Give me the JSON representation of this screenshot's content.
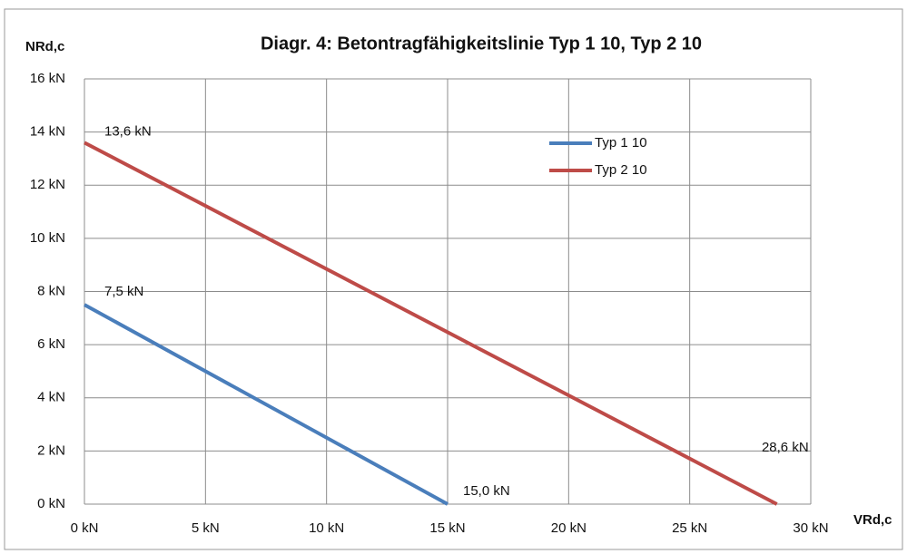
{
  "chart_data": {
    "type": "line",
    "title": "Diagr. 4: Betontragfähigkeitslinie  Typ 1 10, Typ 2 10",
    "y_label": "NRd,c",
    "x_label": "VRd,c",
    "xlim": [
      0,
      30
    ],
    "xticks": [
      {
        "value": 0,
        "label": "0 kN"
      },
      {
        "value": 5,
        "label": "5 kN"
      },
      {
        "value": 10,
        "label": "10 kN"
      },
      {
        "value": 15,
        "label": "15 kN"
      },
      {
        "value": 20,
        "label": "20 kN"
      },
      {
        "value": 25,
        "label": "25 kN"
      },
      {
        "value": 30,
        "label": "30 kN"
      }
    ],
    "ylim": [
      0,
      16
    ],
    "yticks": [
      {
        "value": 0,
        "label": "0 kN"
      },
      {
        "value": 2,
        "label": "2 kN"
      },
      {
        "value": 4,
        "label": "4 kN"
      },
      {
        "value": 6,
        "label": "6 kN"
      },
      {
        "value": 8,
        "label": "8 kN"
      },
      {
        "value": 10,
        "label": "10 kN"
      },
      {
        "value": 12,
        "label": "12 kN"
      },
      {
        "value": 14,
        "label": "14 kN"
      },
      {
        "value": 16,
        "label": "16 kN"
      }
    ],
    "grid": true,
    "series": [
      {
        "name": "Typ 1 10",
        "color": "#4a7ebb",
        "x": [
          0,
          15
        ],
        "values": [
          7.5,
          0
        ],
        "value_labels": [
          "7,5 kN",
          null
        ],
        "x_labels": [
          null,
          "15,0 kN"
        ]
      },
      {
        "name": "Typ 2 10",
        "color": "#be4b48",
        "x": [
          0,
          28.6
        ],
        "values": [
          13.6,
          0
        ],
        "value_labels": [
          "13,6 kN",
          null
        ],
        "x_labels": [
          null,
          "28,6 kN"
        ]
      }
    ]
  }
}
